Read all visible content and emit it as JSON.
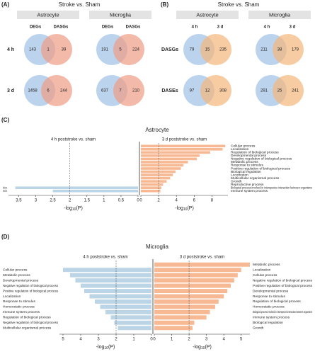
{
  "chart_data": [
    {
      "type": "venn",
      "panel_label": "(A)",
      "title": "Stroke vs. Sham",
      "groups": [
        "Astrocyte",
        "Microglia"
      ],
      "rows": [
        "4 h",
        "3 d"
      ],
      "set_labels": [
        "DEGs",
        "DASGs"
      ],
      "set_colors": [
        "#9fc0e6",
        "#f09c84"
      ],
      "values": [
        [
          [
            143,
            1,
            39
          ],
          [
            191,
            5,
            224
          ]
        ],
        [
          [
            1458,
            6,
            244
          ],
          [
            637,
            7,
            210
          ]
        ]
      ]
    },
    {
      "type": "venn",
      "panel_label": "(B)",
      "title": "Stroke vs. Sham",
      "groups": [
        "Astrocyte",
        "Microglia"
      ],
      "rows": [
        "DASGs",
        "DASEs"
      ],
      "set_labels": [
        "4 h",
        "3 d"
      ],
      "set_colors": [
        "#9fc0e6",
        "#f5b77a"
      ],
      "values": [
        [
          [
            79,
            15,
            235
          ],
          [
            211,
            38,
            179
          ]
        ],
        [
          [
            97,
            12,
            308
          ],
          [
            291,
            25,
            241
          ]
        ]
      ]
    },
    {
      "type": "diverging-bar",
      "panel_label": "(C)",
      "title": "Astrocyte",
      "xlabel": [
        "-log",
        "10",
        "(P)"
      ],
      "threshold": 2,
      "left": {
        "subtitle": "4 h poststroke vs. sham",
        "color": "#bcd5e6",
        "xlim": [
          0,
          3.8
        ],
        "xticks": [
          0,
          0.5,
          1,
          1.5,
          2,
          2.5,
          3,
          3.5
        ],
        "categories": [
          "Metabolic process",
          "Developmental process"
        ],
        "values": [
          3.6,
          2.5
        ]
      },
      "right": {
        "subtitle": "3 d poststroke vs. sham",
        "color": "#f7b993",
        "xlim": [
          0,
          9.8
        ],
        "xticks": [
          0,
          2,
          4,
          6,
          8
        ],
        "categories": [
          "Cellular process",
          "Localization",
          "Regulation of biological process",
          "Developmental process",
          "Negative regulation of biological process",
          "Metabolic process",
          "Response to stimulus",
          "Positive regulation of biological process",
          "Biological regulation",
          "Locomotion",
          "Multicellular organismal process",
          "Growth",
          "Reproductive process",
          "Biological process involved in interspecies interaction between organisms",
          "Immune system process"
        ],
        "values": [
          9.5,
          9.2,
          7.8,
          6.6,
          6.3,
          5.3,
          4.8,
          4.5,
          3.9,
          3.6,
          3.3,
          2.9,
          2.5,
          2.3,
          2.2
        ]
      }
    },
    {
      "type": "diverging-bar",
      "panel_label": "(D)",
      "title": "Microglia",
      "xlabel": [
        "-log",
        "10",
        "(P)"
      ],
      "threshold": 2,
      "left": {
        "subtitle": "4 h poststroke vs. sham",
        "color": "#bcd5e6",
        "xlim": [
          0,
          5.2
        ],
        "xticks": [
          0,
          1,
          2,
          3,
          4,
          5
        ],
        "categories": [
          "Cellular process",
          "Metabolic process",
          "Developmental process",
          "Negative regulation of biological process",
          "Positive regulation of biological process",
          "Localization",
          "Response to stimulus",
          "Homeostatic process",
          "Immune system process",
          "Regulation of biological process",
          "Negative regulation of biological process",
          "Multicellular organismal process"
        ],
        "values": [
          5.0,
          4.6,
          4.3,
          4.0,
          3.8,
          3.5,
          3.2,
          2.9,
          2.6,
          2.3,
          2.1,
          1.9
        ]
      },
      "right": {
        "subtitle": "3 d poststroke vs. sham",
        "color": "#f7b993",
        "xlim": [
          0,
          5.5
        ],
        "xticks": [
          0,
          1,
          2,
          3,
          4,
          5
        ],
        "categories": [
          "Metabolic process",
          "Localization",
          "Cellular process",
          "Negative regulation of biological process",
          "Positive regulation of biological process",
          "Developmental process",
          "Response to stimulus",
          "Regulation of biological process",
          "Homeostatic process",
          "Biological process involved in interspecies interaction between organisms",
          "Immune system process",
          "Biological regulation",
          "Growth"
        ],
        "values": [
          5.5,
          5.0,
          4.8,
          4.6,
          4.4,
          4.2,
          4.0,
          3.7,
          3.5,
          3.2,
          3.0,
          2.3,
          2.2
        ]
      }
    }
  ]
}
